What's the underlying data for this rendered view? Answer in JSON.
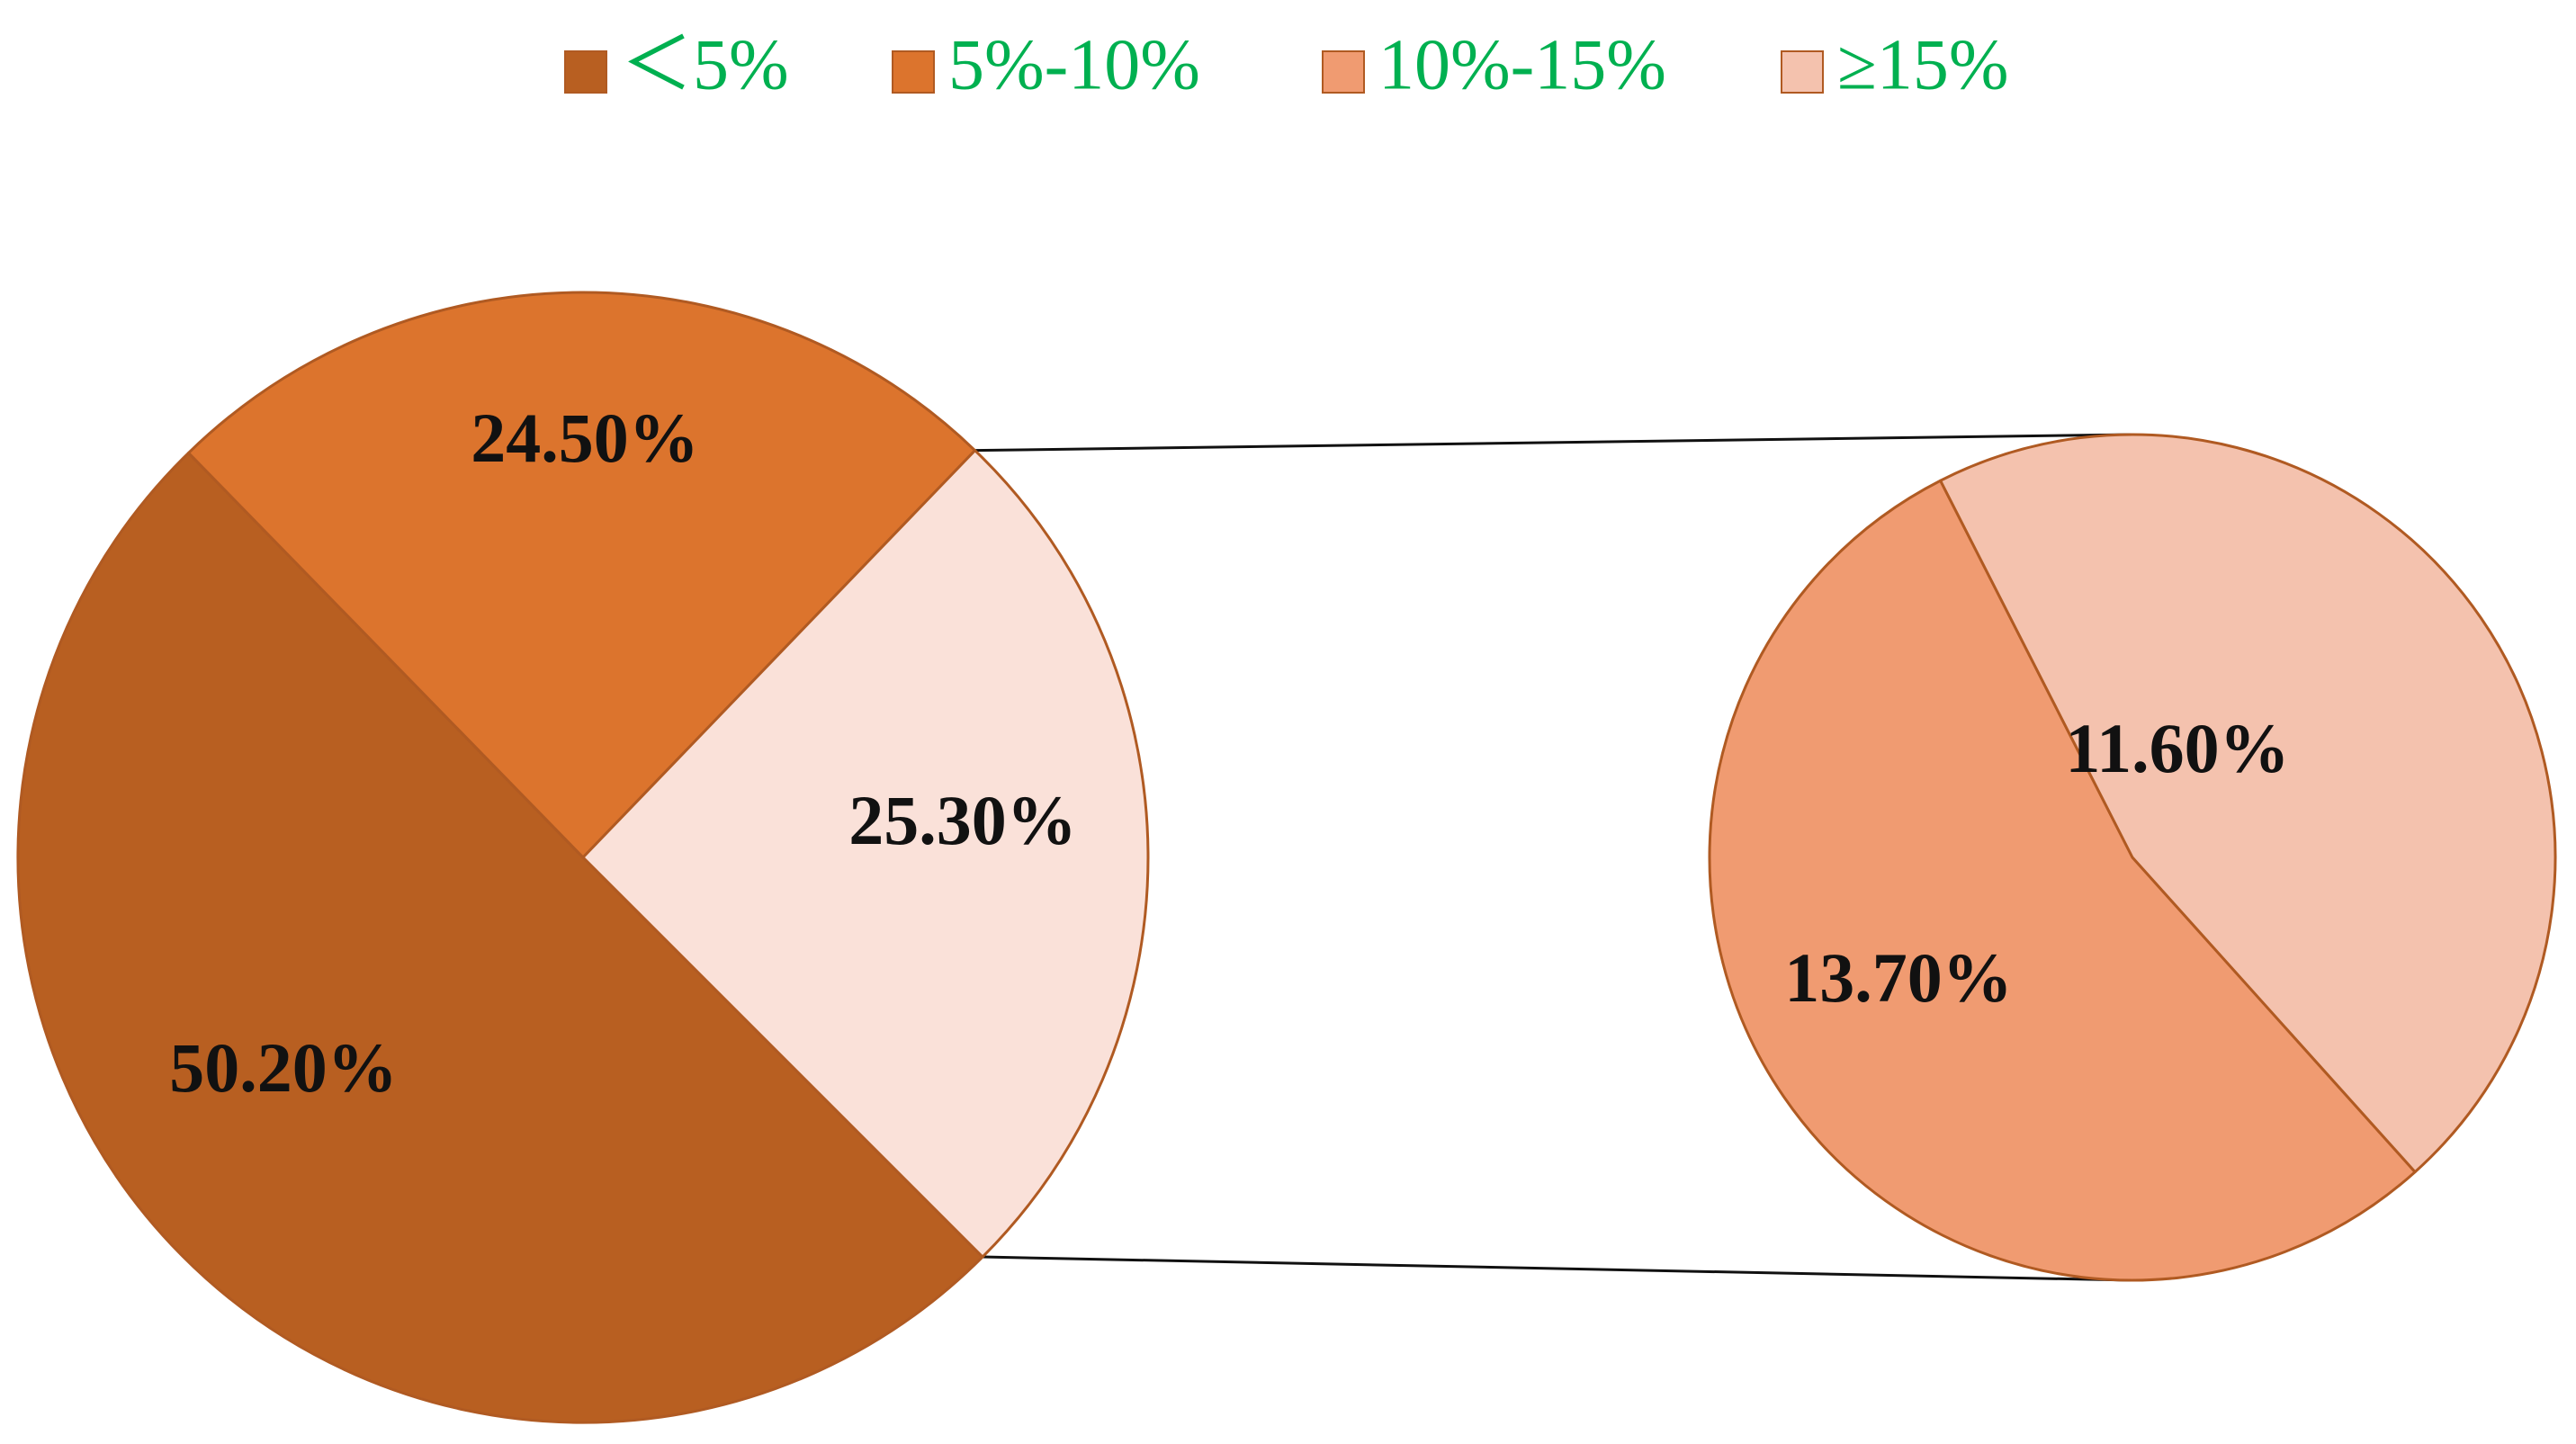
{
  "chart_data": {
    "type": "pie",
    "subtype": "pie-of-pie",
    "title": "",
    "legend": {
      "placement": "top-center",
      "text_color": "#00b050",
      "entries": [
        {
          "label": "＜5%",
          "color": "#b85f21"
        },
        {
          "label": "5%-10%",
          "color": "#dc742d"
        },
        {
          "label": "10%-15%",
          "color": "#f09b71"
        },
        {
          "label": "≥15%",
          "color": "#f4c2ae"
        }
      ]
    },
    "main_pie": {
      "slices": [
        {
          "name": "＜5%",
          "value": 50.2,
          "label": "50.20%",
          "color": "#b85f21"
        },
        {
          "name": "5%-10%",
          "value": 24.5,
          "label": "24.50%",
          "color": "#dc742d"
        },
        {
          "name": "Other",
          "value": 25.3,
          "label": "25.30%",
          "color": "#fae1d9"
        }
      ]
    },
    "secondary_pie": {
      "expands": "Other",
      "slices": [
        {
          "name": "10%-15%",
          "value": 13.7,
          "label": "13.70%",
          "color": "#f09b71"
        },
        {
          "name": "≥15%",
          "value": 11.6,
          "label": "11.60%",
          "color": "#f4c2ae"
        }
      ]
    },
    "edge_color": "#b05a22",
    "connector_color": "#111111"
  }
}
